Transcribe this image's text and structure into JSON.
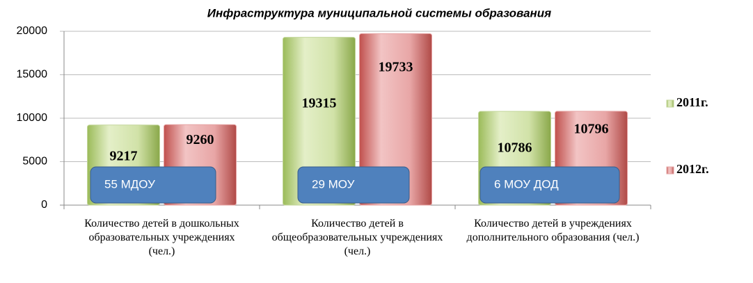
{
  "chart_data": {
    "type": "bar",
    "title": "Инфраструктура  муниципальной системы образования",
    "categories": [
      "Количество детей в дошкольных образовательных учреждениях (чел.)",
      "Количество детей в общеобразовательных учреждениях (чел.)",
      "Количество детей в учреждениях дополнительного образования (чел.)"
    ],
    "series": [
      {
        "name": "2011г.",
        "color": "#c3d69b",
        "values": [
          9217,
          19315,
          10786
        ]
      },
      {
        "name": "2012г.",
        "color": "#e6a3a3",
        "values": [
          9260,
          19733,
          10796
        ]
      }
    ],
    "annotations": [
      "55 МДОУ",
      "29 МОУ",
      "6 МОУ ДОД"
    ],
    "ylim": [
      0,
      20000
    ],
    "yticks": [
      0,
      5000,
      10000,
      15000,
      20000
    ],
    "grid": true,
    "legend": "right"
  }
}
